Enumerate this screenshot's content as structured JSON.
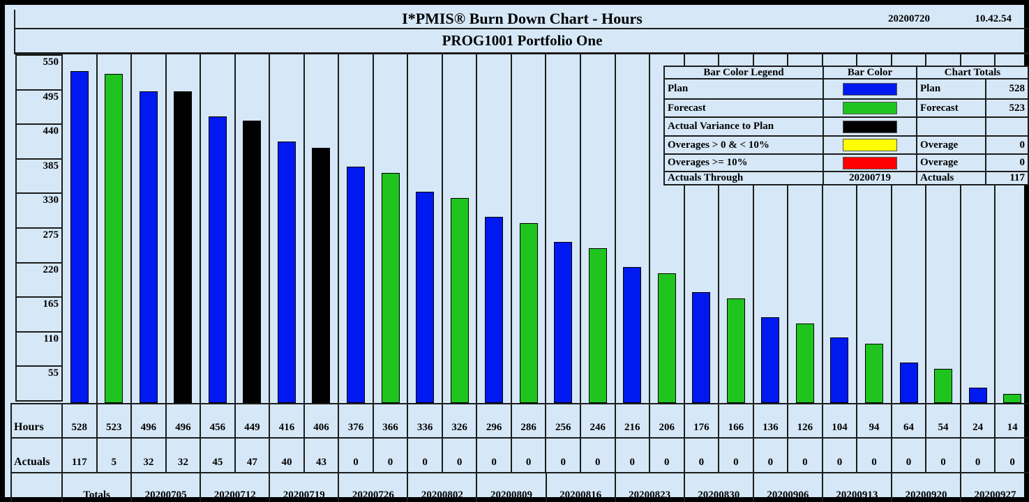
{
  "header": {
    "title": "I*PMIS® Burn Down Chart - Hours",
    "date": "20200720",
    "time": "10.42.54",
    "subtitle": "PROG1001 Portfolio One"
  },
  "colors": {
    "plan": "#0019f0",
    "forecast": "#1fc41f",
    "variance": "#000000",
    "overage_lt10": "#ffff00",
    "overage_gte10": "#ff0000",
    "background": "#d6e8f7",
    "grid_line": "#1c1c1c"
  },
  "legend": {
    "col_headers": [
      "Bar Color Legend",
      "Bar Color",
      "Chart Totals"
    ],
    "rows": [
      {
        "label": "Plan",
        "swatch": "plan",
        "total_label": "Plan",
        "total_value": "528"
      },
      {
        "label": "Forecast",
        "swatch": "forecast",
        "total_label": "Forecast",
        "total_value": "523"
      },
      {
        "label": "Actual Variance to Plan",
        "swatch": "variance",
        "total_label": "",
        "total_value": ""
      },
      {
        "label": "Overages > 0 & < 10%",
        "swatch": "overage_lt10",
        "total_label": "Overage",
        "total_value": "0"
      },
      {
        "label": "Overages >= 10%",
        "swatch": "overage_gte10",
        "total_label": "Overage",
        "total_value": "0"
      },
      {
        "label": "Actuals Through",
        "swatch_text": "20200719",
        "total_label": "Actuals",
        "total_value": "117"
      }
    ]
  },
  "table": {
    "hours_label": "Hours",
    "actuals_label": "Actuals"
  },
  "chart_data": {
    "type": "bar",
    "title": "I*PMIS® Burn Down Chart - Hours",
    "subtitle": "PROG1001 Portfolio One",
    "xlabel": "",
    "ylabel": "Hours",
    "ylim": [
      0,
      550
    ],
    "yticks": [
      550,
      495,
      440,
      385,
      330,
      275,
      220,
      165,
      110,
      55
    ],
    "grid": "vertical column separators; horizontal bands on y-axis only",
    "legend_position": "top-right overlay table",
    "bars": [
      {
        "value": 528,
        "type": "plan"
      },
      {
        "value": 523,
        "type": "forecast"
      },
      {
        "value": 496,
        "type": "plan"
      },
      {
        "value": 496,
        "type": "variance"
      },
      {
        "value": 456,
        "type": "plan"
      },
      {
        "value": 449,
        "type": "variance"
      },
      {
        "value": 416,
        "type": "plan"
      },
      {
        "value": 406,
        "type": "variance"
      },
      {
        "value": 376,
        "type": "plan"
      },
      {
        "value": 366,
        "type": "forecast"
      },
      {
        "value": 336,
        "type": "plan"
      },
      {
        "value": 326,
        "type": "forecast"
      },
      {
        "value": 296,
        "type": "plan"
      },
      {
        "value": 286,
        "type": "forecast"
      },
      {
        "value": 256,
        "type": "plan"
      },
      {
        "value": 246,
        "type": "forecast"
      },
      {
        "value": 216,
        "type": "plan"
      },
      {
        "value": 206,
        "type": "forecast"
      },
      {
        "value": 176,
        "type": "plan"
      },
      {
        "value": 166,
        "type": "forecast"
      },
      {
        "value": 136,
        "type": "plan"
      },
      {
        "value": 126,
        "type": "forecast"
      },
      {
        "value": 104,
        "type": "plan"
      },
      {
        "value": 94,
        "type": "forecast"
      },
      {
        "value": 64,
        "type": "plan"
      },
      {
        "value": 54,
        "type": "forecast"
      },
      {
        "value": 24,
        "type": "plan"
      },
      {
        "value": 14,
        "type": "forecast"
      }
    ],
    "hours": [
      528,
      523,
      496,
      496,
      456,
      449,
      416,
      406,
      376,
      366,
      336,
      326,
      296,
      286,
      256,
      246,
      216,
      206,
      176,
      166,
      136,
      126,
      104,
      94,
      64,
      54,
      24,
      14
    ],
    "actuals": [
      117,
      5,
      32,
      32,
      45,
      47,
      40,
      43,
      0,
      0,
      0,
      0,
      0,
      0,
      0,
      0,
      0,
      0,
      0,
      0,
      0,
      0,
      0,
      0,
      0,
      0,
      0,
      0
    ],
    "date_groups": [
      "Totals",
      "20200705",
      "20200712",
      "20200719",
      "20200726",
      "20200802",
      "20200809",
      "20200816",
      "20200823",
      "20200830",
      "20200906",
      "20200913",
      "20200920",
      "20200927"
    ]
  }
}
